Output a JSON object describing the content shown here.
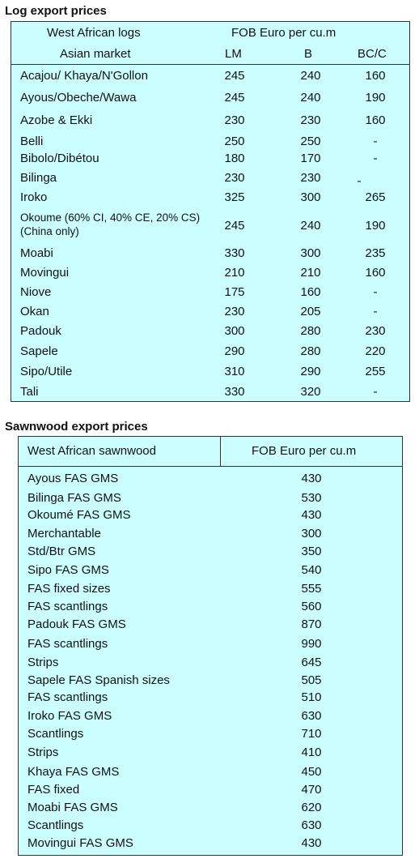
{
  "log": {
    "title": "Log export prices",
    "header": {
      "col1_line1": "West African logs",
      "col1_line2": "Asian market",
      "price_header": "FOB Euro per cu.m",
      "lm": "LM",
      "b": "B",
      "bcc": "BC/C"
    },
    "rows": [
      {
        "name": "Acajou/ Khaya/N'Gollon",
        "lm": "245",
        "b": "240",
        "bcc": "160"
      },
      {
        "name": "Ayous/Obeche/Wawa",
        "lm": "245",
        "b": "240",
        "bcc": "190"
      },
      {
        "name": "Azobe & Ekki",
        "lm": "230",
        "b": "230",
        "bcc": "160"
      },
      {
        "name": "Belli",
        "lm": "250",
        "b": "250",
        "bcc": "-"
      },
      {
        "name": "Bibolo/Dibétou",
        "lm": "180",
        "b": "170",
        "bcc": "-"
      },
      {
        "name": "Bilinga",
        "lm": "230",
        "b": "230",
        "bcc": "-"
      },
      {
        "name": "Iroko",
        "lm": "325",
        "b": "300",
        "bcc": "265"
      },
      {
        "name": "Okoume (60% CI, 40% CE, 20% CS) (China only)",
        "lm": "245",
        "b": "240",
        "bcc": "190"
      },
      {
        "name": "Moabi",
        "lm": "330",
        "b": "300",
        "bcc": "235"
      },
      {
        "name": "Movingui",
        "lm": "210",
        "b": "210",
        "bcc": "160"
      },
      {
        "name": "Niove",
        "lm": "175",
        "b": "160",
        "bcc": "-"
      },
      {
        "name": "Okan",
        "lm": "230",
        "b": "205",
        "bcc": "-"
      },
      {
        "name": "Padouk",
        "lm": "300",
        "b": "280",
        "bcc": "230"
      },
      {
        "name": "Sapele",
        "lm": "290",
        "b": "280",
        "bcc": "220"
      },
      {
        "name": "Sipo/Utile",
        "lm": "310",
        "b": "290",
        "bcc": "255"
      },
      {
        "name": "Tali",
        "lm": "330",
        "b": "320",
        "bcc": "-"
      }
    ]
  },
  "sawn": {
    "title": "Sawnwood export prices",
    "header": {
      "col1": "West African sawnwood",
      "col2": "FOB Euro per cu.m"
    },
    "rows": [
      {
        "name": "Ayous FAS GMS",
        "value": "430"
      },
      {
        "name": "Bilinga FAS GMS",
        "value": "530"
      },
      {
        "name": "Okoumé FAS GMS",
        "value": "430"
      },
      {
        "name": "Merchantable",
        "value": "300"
      },
      {
        "name": "Std/Btr GMS",
        "value": "350"
      },
      {
        "name": "Sipo FAS GMS",
        "value": "540"
      },
      {
        "name": "FAS fixed sizes",
        "value": "555"
      },
      {
        "name": "FAS scantlings",
        "value": "560"
      },
      {
        "name": "Padouk FAS GMS",
        "value": "870"
      },
      {
        "name": "FAS scantlings",
        "value": "990"
      },
      {
        "name": "Strips",
        "value": "645"
      },
      {
        "name": "Sapele FAS Spanish sizes",
        "value": "505"
      },
      {
        "name": "FAS scantlings",
        "value": "510"
      },
      {
        "name": "Iroko FAS GMS",
        "value": "630"
      },
      {
        "name": "Scantlings",
        "value": "710"
      },
      {
        "name": "Strips",
        "value": "410"
      },
      {
        "name": "Khaya FAS GMS",
        "value": "450"
      },
      {
        "name": "FAS fixed",
        "value": "470"
      },
      {
        "name": "Moabi FAS GMS",
        "value": "620"
      },
      {
        "name": "Scantlings",
        "value": "630"
      },
      {
        "name": "Movingui FAS GMS",
        "value": "430"
      }
    ]
  }
}
